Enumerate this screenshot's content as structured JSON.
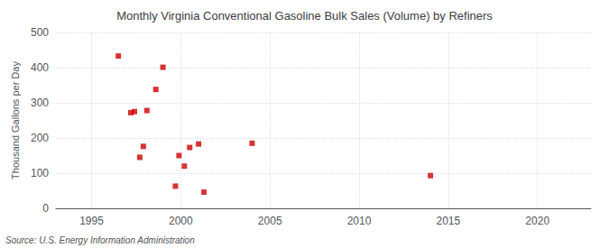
{
  "chart_data": {
    "type": "scatter",
    "title": "Monthly Virginia Conventional Gasoline Bulk Sales (Volume) by Refiners",
    "ylabel": "Thousand Gallons per Day",
    "annotations": [
      "Source: U.S. Energy Information Administration"
    ],
    "color": "#cc0000",
    "marker": "square",
    "x": [
      1996.5,
      1997.2,
      1997.4,
      1997.7,
      1997.9,
      1998.1,
      1998.6,
      1999.0,
      1999.7,
      1999.9,
      2000.2,
      2000.5,
      2001.0,
      2001.3,
      2004.0,
      2014.0
    ],
    "values": [
      433,
      272,
      275,
      145,
      176,
      278,
      338,
      401,
      63,
      150,
      120,
      173,
      183,
      46,
      185,
      93
    ],
    "xlim": [
      1993,
      2023
    ],
    "ylim": [
      0,
      500
    ],
    "xticks": [
      1995,
      2000,
      2005,
      2010,
      2015,
      2020
    ],
    "yticks": [
      0,
      100,
      200,
      300,
      400,
      500
    ],
    "grid": true
  }
}
